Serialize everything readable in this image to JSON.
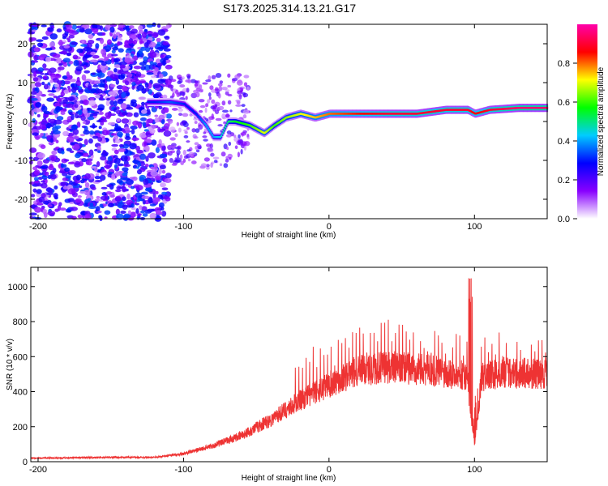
{
  "figure": {
    "title": "S173.2025.314.13.21.G17"
  },
  "chart_data": [
    {
      "type": "heatmap",
      "name": "spectrogram",
      "xlabel": "Height of straight line (km)",
      "ylabel": "Frequency (Hz)",
      "xlim": [
        -205,
        150
      ],
      "ylim": [
        -25,
        25
      ],
      "xticks": [
        -200,
        -100,
        0,
        100
      ],
      "yticks": [
        -20,
        -10,
        0,
        10,
        20
      ],
      "colorbar": {
        "label": "Normalized spectral amplitude",
        "range": [
          0,
          1
        ],
        "ticks": [
          "0.0",
          "0.2",
          "0.4",
          "0.6",
          "0.8"
        ],
        "colors": [
          "#ffffff",
          "#8800ff",
          "#0000ff",
          "#00ccff",
          "#00ff00",
          "#ffff00",
          "#ff0000",
          "#ff00aa"
        ]
      },
      "ridge": {
        "x": [
          -120,
          -110,
          -100,
          -92,
          -85,
          -80,
          -75,
          -70,
          -65,
          -55,
          -45,
          -38,
          -30,
          -20,
          -10,
          0,
          20,
          40,
          60,
          80,
          95,
          100,
          110,
          130,
          150
        ],
        "freq": [
          5,
          5,
          4.5,
          2,
          -1,
          -4,
          -4,
          0,
          0,
          -1,
          -3,
          -1,
          1,
          2,
          1,
          2,
          2,
          2,
          2,
          3,
          3,
          2,
          3,
          3.5,
          3.5
        ],
        "amplitude": [
          0.3,
          0.35,
          0.3,
          0.3,
          0.4,
          0.4,
          0.45,
          0.5,
          0.55,
          0.6,
          0.7,
          0.6,
          0.65,
          0.7,
          0.75,
          0.8,
          0.85,
          0.9,
          0.9,
          0.9,
          0.9,
          0.85,
          0.9,
          0.95,
          0.95
        ]
      }
    },
    {
      "type": "line",
      "name": "snr",
      "xlabel": "Height of straight line (km)",
      "ylabel": "SNR (10 * v/v)",
      "xlim": [
        -205,
        150
      ],
      "ylim": [
        0,
        1110
      ],
      "xticks": [
        -200,
        -100,
        0,
        100
      ],
      "yticks": [
        0,
        200,
        400,
        600,
        800,
        1000
      ],
      "color": "#ee3333",
      "trend": {
        "x": [
          -205,
          -150,
          -120,
          -100,
          -80,
          -60,
          -40,
          -20,
          0,
          20,
          40,
          60,
          80,
          95,
          100,
          105,
          120,
          150
        ],
        "y": [
          20,
          25,
          25,
          45,
          90,
          150,
          240,
          350,
          440,
          520,
          540,
          530,
          510,
          490,
          100,
          480,
          510,
          500
        ]
      }
    }
  ]
}
